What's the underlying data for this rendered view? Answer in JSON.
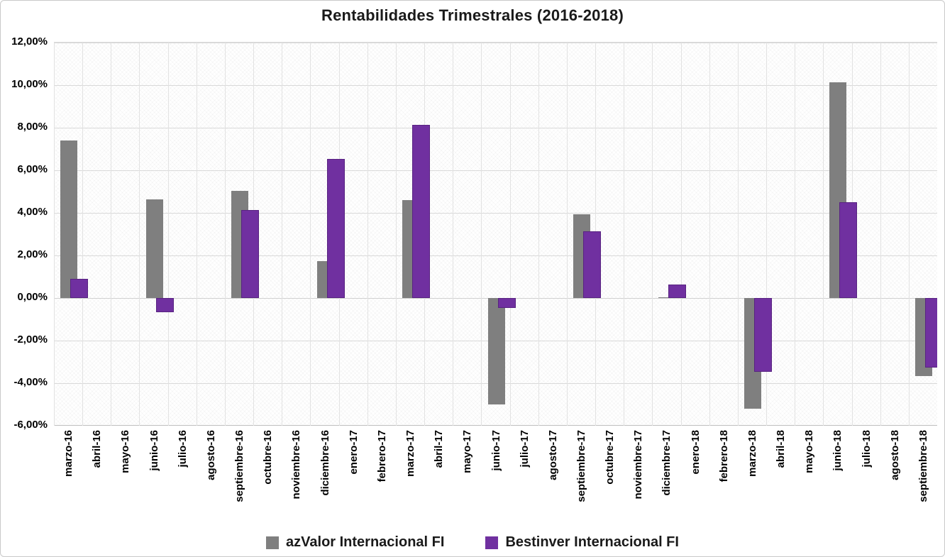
{
  "chart_data": {
    "type": "bar",
    "title": "Rentabilidades Trimestrales (2016-2018)",
    "categories": [
      "marzo-16",
      "abril-16",
      "mayo-16",
      "junio-16",
      "julio-16",
      "agosto-16",
      "septiembre-16",
      "octubre-16",
      "noviembre-16",
      "diciembre-16",
      "enero-17",
      "febrero-17",
      "marzo-17",
      "abril-17",
      "mayo-17",
      "junio-17",
      "julio-17",
      "agosto-17",
      "septiembre-17",
      "octubre-17",
      "noviembre-17",
      "diciembre-17",
      "enero-18",
      "febrero-18",
      "marzo-18",
      "abril-18",
      "mayo-18",
      "junio-18",
      "julio-18",
      "agosto-18",
      "septiembre-18"
    ],
    "series": [
      {
        "name": "azValor Internacional FI",
        "color": "#7F7F7F",
        "values": [
          7.4,
          null,
          null,
          4.65,
          null,
          null,
          5.05,
          null,
          null,
          1.75,
          null,
          null,
          4.6,
          null,
          null,
          -5.0,
          null,
          null,
          3.95,
          null,
          null,
          0.05,
          null,
          null,
          -5.2,
          null,
          null,
          10.15,
          null,
          null,
          -3.65
        ]
      },
      {
        "name": "Bestinver Internacional FI",
        "color": "#7030A0",
        "values": [
          0.9,
          null,
          null,
          -0.65,
          null,
          null,
          4.15,
          null,
          null,
          6.55,
          null,
          null,
          8.15,
          null,
          null,
          -0.45,
          null,
          null,
          3.15,
          null,
          null,
          0.65,
          null,
          null,
          -3.45,
          null,
          null,
          4.5,
          null,
          null,
          -3.25
        ]
      }
    ],
    "ylim": [
      -6,
      12
    ],
    "ytick_step": 2,
    "ytick_labels": [
      "12,00%",
      "10,00%",
      "8,00%",
      "6,00%",
      "4,00%",
      "2,00%",
      "0,00%",
      "-2,00%",
      "-4,00%",
      "-6,00%"
    ],
    "grid": "both",
    "legend_position": "bottom",
    "xlabel": "",
    "ylabel": ""
  }
}
